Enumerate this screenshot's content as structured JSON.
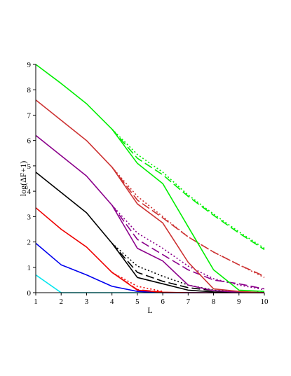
{
  "chart_data": {
    "type": "line",
    "title": "",
    "xlabel": "L",
    "ylabel": "log(ΔF+1)",
    "xlim": [
      1,
      10
    ],
    "ylim": [
      0,
      9
    ],
    "xticks": [
      1,
      2,
      3,
      4,
      5,
      6,
      7,
      8,
      9,
      10
    ],
    "yticks": [
      0,
      1,
      2,
      3,
      4,
      5,
      6,
      7,
      8,
      9
    ],
    "grid": false,
    "legend": "none",
    "series": [
      {
        "color": "#00e5ee",
        "dash": "solid",
        "x": [
          1,
          2,
          3,
          4,
          5,
          6,
          7,
          8,
          9,
          10
        ],
        "y": [
          0.7,
          0,
          0,
          0,
          0,
          0,
          0,
          0,
          0,
          0
        ]
      },
      {
        "color": "#0000ee",
        "dash": "solid",
        "x": [
          1,
          2,
          3,
          4,
          5,
          6,
          7,
          8,
          9,
          10
        ],
        "y": [
          1.95,
          1.1,
          0.7,
          0.25,
          0.05,
          0,
          0,
          0,
          0,
          0
        ]
      },
      {
        "color": "#ee0000",
        "dash": "solid",
        "x": [
          1,
          2,
          3,
          4,
          5,
          6,
          7,
          8,
          9,
          10
        ],
        "y": [
          3.35,
          2.5,
          1.8,
          0.8,
          0.1,
          0.02,
          0,
          0,
          0,
          0
        ]
      },
      {
        "color": "#ee0000",
        "dash": "dashed",
        "x": [
          4,
          5,
          6
        ],
        "y": [
          0.8,
          0.12,
          0.02
        ]
      },
      {
        "color": "#ee0000",
        "dash": "dotted",
        "x": [
          4,
          5,
          6
        ],
        "y": [
          0.8,
          0.25,
          0.05
        ]
      },
      {
        "color": "#000000",
        "dash": "solid",
        "x": [
          1,
          2,
          3,
          4,
          5,
          6,
          7,
          8,
          9,
          10
        ],
        "y": [
          4.75,
          3.95,
          3.15,
          1.95,
          0.6,
          0.35,
          0.1,
          0.03,
          0.01,
          0
        ]
      },
      {
        "color": "#000000",
        "dash": "dashed",
        "x": [
          4,
          5,
          6,
          7,
          8,
          9,
          10
        ],
        "y": [
          1.95,
          0.8,
          0.45,
          0.2,
          0.08,
          0.02,
          0
        ]
      },
      {
        "color": "#000000",
        "dash": "dotted",
        "x": [
          4,
          5,
          6,
          7,
          8,
          9,
          10
        ],
        "y": [
          1.95,
          1.05,
          0.65,
          0.3,
          0.1,
          0.03,
          0.01
        ]
      },
      {
        "color": "#8b008b",
        "dash": "solid",
        "x": [
          1,
          2,
          3,
          4,
          5,
          6,
          7,
          8,
          9,
          10
        ],
        "y": [
          6.2,
          5.4,
          4.6,
          3.45,
          1.75,
          1.25,
          0.3,
          0.08,
          0.02,
          0
        ]
      },
      {
        "color": "#8b008b",
        "dash": "dashed",
        "x": [
          4,
          5,
          6,
          7,
          8,
          9,
          10
        ],
        "y": [
          3.45,
          2.1,
          1.5,
          0.9,
          0.5,
          0.35,
          0.15
        ]
      },
      {
        "color": "#8b008b",
        "dash": "dotted",
        "x": [
          4,
          5,
          6,
          7,
          8,
          9,
          10
        ],
        "y": [
          3.45,
          2.35,
          1.75,
          1.05,
          0.55,
          0.3,
          0.12
        ]
      },
      {
        "color": "#cd3333",
        "dash": "solid",
        "x": [
          1,
          2,
          3,
          4,
          5,
          6,
          7,
          8,
          9,
          10
        ],
        "y": [
          7.6,
          6.8,
          6.0,
          4.95,
          3.5,
          2.75,
          1.2,
          0.15,
          0.05,
          0
        ]
      },
      {
        "color": "#cd3333",
        "dash": "dashed",
        "x": [
          4,
          5,
          6,
          7,
          8,
          9,
          10
        ],
        "y": [
          4.95,
          3.65,
          2.95,
          2.2,
          1.6,
          1.1,
          0.65
        ]
      },
      {
        "color": "#cd3333",
        "dash": "dotted",
        "x": [
          4,
          5,
          6,
          7,
          8,
          9,
          10
        ],
        "y": [
          4.95,
          3.8,
          3.0,
          2.2,
          1.6,
          1.1,
          0.6
        ]
      },
      {
        "color": "#00ee00",
        "dash": "solid",
        "x": [
          1,
          2,
          3,
          4,
          5,
          6,
          7,
          8,
          9,
          10
        ],
        "y": [
          9.0,
          8.25,
          7.45,
          6.45,
          5.1,
          4.3,
          2.6,
          0.9,
          0.1,
          0.05
        ]
      },
      {
        "color": "#00ee00",
        "dash": "dashed",
        "x": [
          4,
          5,
          6,
          7,
          8,
          9,
          10
        ],
        "y": [
          6.45,
          5.3,
          4.65,
          3.8,
          3.05,
          2.35,
          1.7
        ]
      },
      {
        "color": "#00ee00",
        "dash": "dotted",
        "x": [
          4,
          5,
          6,
          7,
          8,
          9,
          10
        ],
        "y": [
          6.45,
          5.45,
          4.75,
          3.85,
          3.1,
          2.4,
          1.75
        ]
      }
    ]
  }
}
